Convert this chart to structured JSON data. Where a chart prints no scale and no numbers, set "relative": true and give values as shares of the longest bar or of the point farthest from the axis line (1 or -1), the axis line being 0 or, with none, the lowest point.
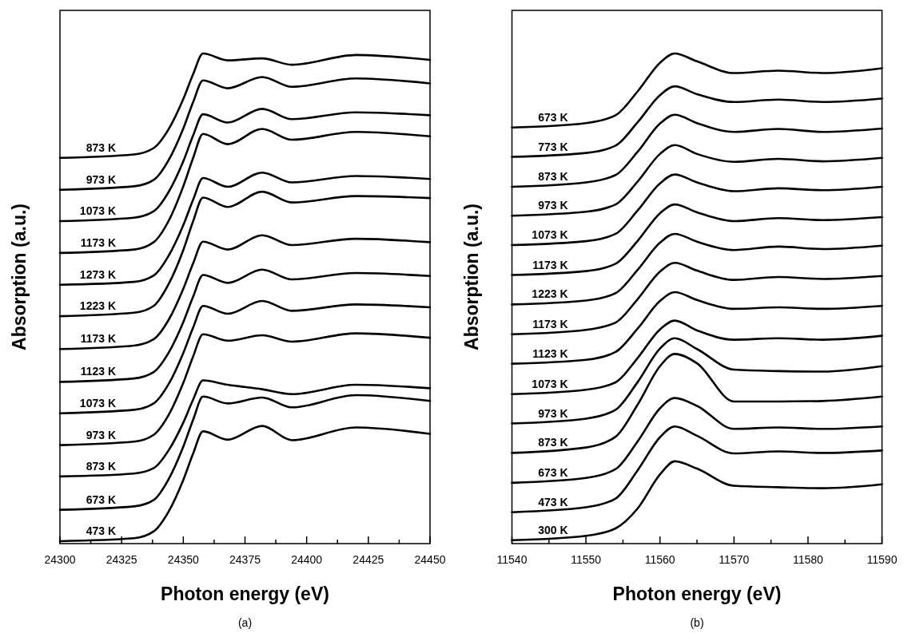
{
  "chart_data": [
    {
      "type": "line",
      "xlabel": "Photon energy (eV)",
      "ylabel": "Absorption (a.u.)",
      "annotations": [
        "(a)"
      ],
      "relative": true,
      "legend": false,
      "marker": "none",
      "line_style": "solid",
      "grid": false,
      "x": [
        24300,
        24330,
        24338,
        24344,
        24350,
        24354,
        24358,
        24368,
        24382,
        24394,
        24420,
        24450
      ],
      "xlim": [
        24300,
        24450
      ],
      "xticks": [
        24300,
        {
          "value": 24312.5,
          "label": null
        },
        24325,
        {
          "value": 24337.5,
          "label": null
        },
        24350,
        {
          "value": 24362.5,
          "label": null
        },
        24375,
        {
          "value": 24387.5,
          "label": null
        },
        24400,
        {
          "value": 24412.5,
          "label": null
        },
        24425,
        {
          "value": 24437.5,
          "label": null
        },
        24450
      ],
      "series": [
        {
          "name": "873 K",
          "color": "#000000",
          "values": [
            0.787,
            0.794,
            0.807,
            0.845,
            0.907,
            0.958,
            1.0,
            0.986,
            0.99,
            0.977,
            0.997,
            0.987
          ]
        },
        {
          "name": "973 K",
          "color": "#000000",
          "values": [
            0.722,
            0.729,
            0.742,
            0.782,
            0.847,
            0.901,
            0.945,
            0.929,
            0.952,
            0.932,
            0.949,
            0.939
          ]
        },
        {
          "name": "1073 K",
          "color": "#000000",
          "values": [
            0.658,
            0.665,
            0.678,
            0.717,
            0.78,
            0.833,
            0.876,
            0.859,
            0.887,
            0.866,
            0.88,
            0.874
          ]
        },
        {
          "name": "1173 K",
          "color": "#000000",
          "values": [
            0.593,
            0.6,
            0.615,
            0.658,
            0.729,
            0.787,
            0.836,
            0.815,
            0.846,
            0.824,
            0.84,
            0.831
          ]
        },
        {
          "name": "1273 K",
          "color": "#000000",
          "values": [
            0.528,
            0.534,
            0.547,
            0.587,
            0.65,
            0.702,
            0.746,
            0.728,
            0.757,
            0.737,
            0.75,
            0.744
          ]
        },
        {
          "name": "1223 K",
          "color": "#000000",
          "values": [
            0.464,
            0.471,
            0.485,
            0.529,
            0.599,
            0.658,
            0.706,
            0.687,
            0.718,
            0.696,
            0.709,
            0.705
          ]
        },
        {
          "name": "1173 K",
          "color": "#000000",
          "values": [
            0.397,
            0.404,
            0.417,
            0.456,
            0.52,
            0.572,
            0.616,
            0.6,
            0.629,
            0.609,
            0.622,
            0.615
          ]
        },
        {
          "name": "1123 K",
          "color": "#000000",
          "values": [
            0.33,
            0.337,
            0.35,
            0.389,
            0.452,
            0.504,
            0.548,
            0.532,
            0.559,
            0.539,
            0.552,
            0.546
          ]
        },
        {
          "name": "1073 K",
          "color": "#000000",
          "values": [
            0.266,
            0.273,
            0.286,
            0.325,
            0.389,
            0.441,
            0.485,
            0.469,
            0.495,
            0.475,
            0.488,
            0.482
          ]
        },
        {
          "name": "973 K",
          "color": "#000000",
          "values": [
            0.201,
            0.208,
            0.222,
            0.262,
            0.328,
            0.382,
            0.427,
            0.414,
            0.425,
            0.412,
            0.429,
            0.42
          ]
        },
        {
          "name": "873 K",
          "color": "#000000",
          "values": [
            0.137,
            0.143,
            0.154,
            0.19,
            0.247,
            0.294,
            0.333,
            0.324,
            0.315,
            0.305,
            0.324,
            0.317
          ]
        },
        {
          "name": "673 K",
          "color": "#000000",
          "values": [
            0.069,
            0.076,
            0.089,
            0.131,
            0.198,
            0.253,
            0.3,
            0.286,
            0.298,
            0.278,
            0.303,
            0.291
          ]
        },
        {
          "name": "473 K",
          "color": "#000000",
          "values": [
            0.005,
            0.011,
            0.025,
            0.065,
            0.13,
            0.184,
            0.229,
            0.212,
            0.24,
            0.211,
            0.237,
            0.224
          ]
        }
      ]
    },
    {
      "type": "line",
      "xlabel": "Photon energy (eV)",
      "ylabel": "Absorption (a.u.)",
      "annotations": [
        "(b)"
      ],
      "relative": true,
      "legend": false,
      "marker": "none",
      "line_style": "solid",
      "grid": false,
      "x": [
        11540,
        11550,
        11554,
        11557,
        11560,
        11562,
        11565,
        11570,
        11576,
        11582,
        11590
      ],
      "xlim": [
        11540,
        11590
      ],
      "xticks": [
        11540,
        {
          "value": 11545,
          "label": null
        },
        11550,
        {
          "value": 11555,
          "label": null
        },
        11560,
        {
          "value": 11565,
          "label": null
        },
        11570,
        {
          "value": 11575,
          "label": null
        },
        11580,
        {
          "value": 11585,
          "label": null
        },
        11590
      ],
      "series": [
        {
          "name": "673 K",
          "color": "#000000",
          "values": [
            0.849,
            0.858,
            0.874,
            0.923,
            0.981,
            1.0,
            0.984,
            0.96,
            0.965,
            0.96,
            0.97
          ]
        },
        {
          "name": "773 K",
          "color": "#000000",
          "values": [
            0.789,
            0.797,
            0.812,
            0.86,
            0.915,
            0.933,
            0.917,
            0.901,
            0.906,
            0.901,
            0.908
          ]
        },
        {
          "name": "873 K",
          "color": "#000000",
          "values": [
            0.728,
            0.737,
            0.752,
            0.8,
            0.857,
            0.875,
            0.858,
            0.84,
            0.846,
            0.84,
            0.847
          ]
        },
        {
          "name": "973 K",
          "color": "#000000",
          "values": [
            0.669,
            0.677,
            0.692,
            0.739,
            0.795,
            0.813,
            0.795,
            0.779,
            0.785,
            0.78,
            0.787
          ]
        },
        {
          "name": "1073 K",
          "color": "#000000",
          "values": [
            0.609,
            0.617,
            0.632,
            0.68,
            0.735,
            0.753,
            0.737,
            0.719,
            0.725,
            0.721,
            0.728
          ]
        },
        {
          "name": "1173 K",
          "color": "#000000",
          "values": [
            0.548,
            0.556,
            0.571,
            0.618,
            0.674,
            0.692,
            0.676,
            0.658,
            0.664,
            0.66,
            0.666
          ]
        },
        {
          "name": "1223 K",
          "color": "#000000",
          "values": [
            0.488,
            0.496,
            0.511,
            0.559,
            0.614,
            0.632,
            0.616,
            0.599,
            0.606,
            0.601,
            0.608
          ]
        },
        {
          "name": "1173 K",
          "color": "#000000",
          "values": [
            0.427,
            0.436,
            0.451,
            0.499,
            0.555,
            0.573,
            0.557,
            0.538,
            0.544,
            0.54,
            0.546
          ]
        },
        {
          "name": "1123 K",
          "color": "#000000",
          "values": [
            0.367,
            0.375,
            0.391,
            0.439,
            0.495,
            0.513,
            0.497,
            0.479,
            0.482,
            0.479,
            0.485
          ]
        },
        {
          "name": "1073 K",
          "color": "#000000",
          "values": [
            0.305,
            0.314,
            0.329,
            0.379,
            0.437,
            0.455,
            0.435,
            0.416,
            0.419,
            0.416,
            0.424
          ]
        },
        {
          "name": "973 K",
          "color": "#000000",
          "values": [
            0.245,
            0.255,
            0.273,
            0.33,
            0.398,
            0.419,
            0.397,
            0.355,
            0.352,
            0.351,
            0.362
          ]
        },
        {
          "name": "873 K",
          "color": "#000000",
          "values": [
            0.185,
            0.196,
            0.218,
            0.284,
            0.362,
            0.387,
            0.368,
            0.29,
            0.29,
            0.291,
            0.3
          ]
        },
        {
          "name": "673 K",
          "color": "#000000",
          "values": [
            0.124,
            0.134,
            0.152,
            0.209,
            0.276,
            0.297,
            0.281,
            0.234,
            0.237,
            0.234,
            0.239
          ]
        },
        {
          "name": "473 K",
          "color": "#000000",
          "values": [
            0.064,
            0.074,
            0.092,
            0.15,
            0.217,
            0.239,
            0.22,
            0.184,
            0.188,
            0.185,
            0.19
          ]
        },
        {
          "name": "300 K",
          "color": "#000000",
          "values": [
            0.007,
            0.016,
            0.031,
            0.072,
            0.141,
            0.168,
            0.153,
            0.118,
            0.115,
            0.113,
            0.121
          ]
        }
      ]
    }
  ]
}
